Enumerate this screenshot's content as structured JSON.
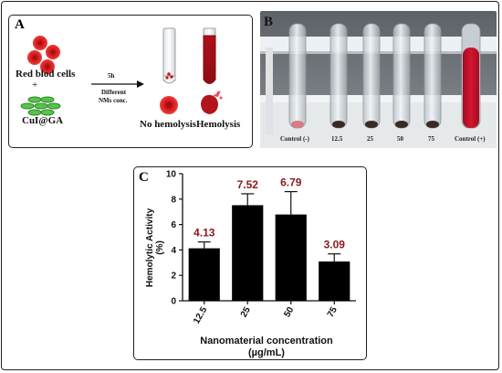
{
  "panel_a": {
    "tag": "A",
    "red_blood_cells": "Red blod cells",
    "plus": "+",
    "nanomaterial": "CuI@GA",
    "time": "5h",
    "condition_line1": "Different",
    "condition_line2": "NMs conc.",
    "no_hemolysis": "No hemolysis",
    "hemolysis": "Hemolysis"
  },
  "panel_b": {
    "tag": "B",
    "tube_labels": [
      "Control (-)",
      "12.5",
      "25",
      "50",
      "75",
      "Control (+)"
    ],
    "colors": {
      "rack": "#e7ebee",
      "background": "#6f7479",
      "positive": "#c8102e",
      "pellet": "#3a2a26"
    }
  },
  "panel_c": {
    "tag": "C",
    "colors": {
      "bar": "#000000",
      "value_label": "#8b1a1a"
    }
  },
  "chart_data": {
    "type": "bar",
    "categories": [
      "12.5",
      "25",
      "50",
      "75"
    ],
    "values": [
      4.13,
      7.52,
      6.79,
      3.09
    ],
    "value_labels": [
      "4.13",
      "7.52",
      "6.79",
      "3.09"
    ],
    "error": [
      0.5,
      0.9,
      1.8,
      0.6
    ],
    "ylabel_line1": "Hemolytic Activity",
    "ylabel_line2": "(%)",
    "xlabel_line1": "Nanomaterial concentration",
    "xlabel_line2": "(µg/mL)",
    "ylim": [
      0,
      10
    ],
    "yticks": [
      "0",
      "2",
      "4",
      "6",
      "8",
      "10"
    ]
  }
}
